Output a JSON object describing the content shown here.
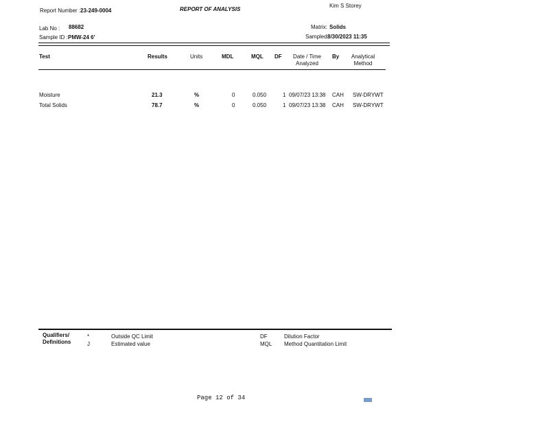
{
  "header": {
    "report_number_label": "Report Number :",
    "report_number": "23-249-0004",
    "title": "REPORT OF ANALYSIS",
    "signer": "Kim S Storey",
    "lab_no_label": "Lab No :",
    "lab_no": "88682",
    "sample_id_label": "Sample ID :",
    "sample_id": "PMW-24 6'",
    "matrix_label": "Matrix:",
    "matrix": "Solids",
    "sampled_label": "Sampled:",
    "sampled": "8/30/2023 11:35"
  },
  "table": {
    "columns": [
      "Test",
      "Results",
      "Units",
      "MDL",
      "MQL",
      "DF",
      "Date / Time Analyzed",
      "By",
      "Analytical Method"
    ],
    "rows": [
      [
        "Moisture",
        "21.3",
        "%",
        "0",
        "0.050",
        "1",
        "09/07/23 13:38",
        "CAH",
        "SW-DRYWT"
      ],
      [
        "Total Solids",
        "78.7",
        "%",
        "0",
        "0.050",
        "1",
        "09/07/23 13:38",
        "CAH",
        "SW-DRYWT"
      ]
    ]
  },
  "footer": {
    "qualifiers_label": "Qualifiers/ Definitions",
    "definitions": [
      {
        "code": "*",
        "text": "Outside QC Limit"
      },
      {
        "code": "J",
        "text": "Estimated value"
      },
      {
        "code": "DF",
        "text": "Dilution Factor"
      },
      {
        "code": "MQL",
        "text": "Method Quantitation Limit"
      }
    ],
    "page": "Page 12 of 34"
  }
}
